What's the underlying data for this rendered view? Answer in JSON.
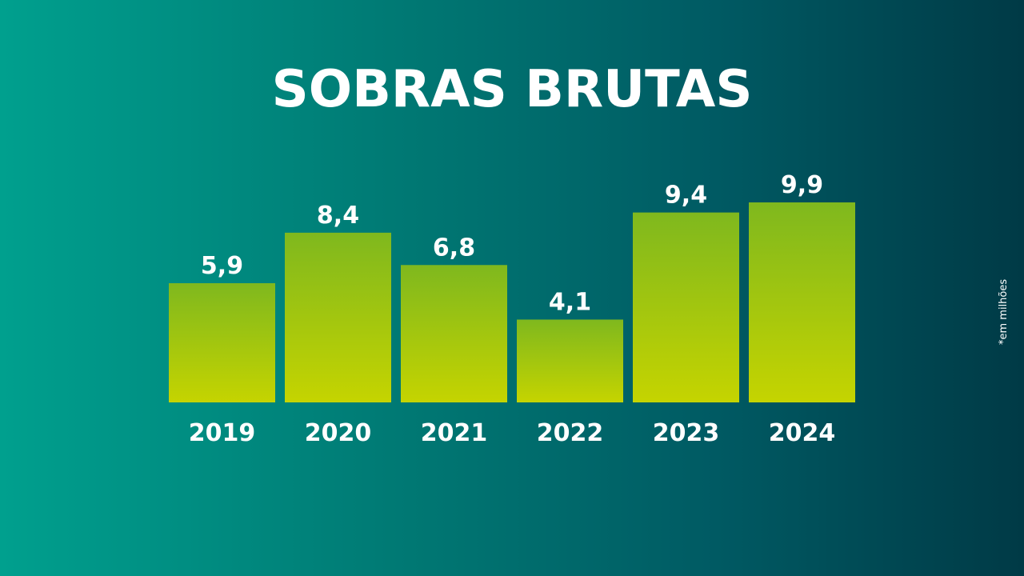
{
  "header": {
    "title": "SOBRAS BRUTAS"
  },
  "note": "*em milhões",
  "colors": {
    "bar_top": "#7fb81e",
    "bar_bottom": "#c5d400",
    "text": "#ffffff"
  },
  "chart_data": {
    "type": "bar",
    "title": "SOBRAS BRUTAS",
    "categories": [
      "2019",
      "2020",
      "2021",
      "2022",
      "2023",
      "2024"
    ],
    "values": [
      5.9,
      8.4,
      6.8,
      4.1,
      9.4,
      9.9
    ],
    "value_labels": [
      "5,9",
      "8,4",
      "6,8",
      "4,1",
      "9,4",
      "9,9"
    ],
    "xlabel": "",
    "ylabel": "",
    "ylim": [
      0,
      9.9
    ],
    "grid": false,
    "legend": "none"
  }
}
